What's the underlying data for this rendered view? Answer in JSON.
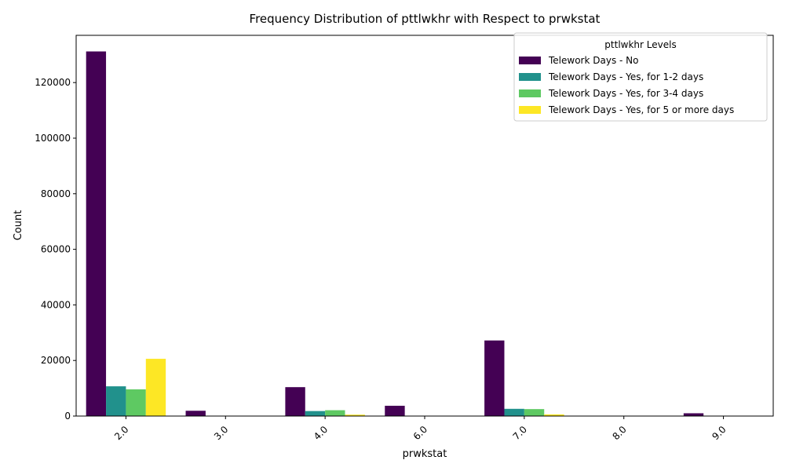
{
  "chart_data": {
    "type": "bar",
    "title": "Frequency Distribution of pttlwkhr with Respect to prwkstat",
    "xlabel": "prwkstat",
    "ylabel": "Count",
    "categories": [
      "2.0",
      "3.0",
      "4.0",
      "6.0",
      "7.0",
      "8.0",
      "9.0"
    ],
    "ylim": [
      0,
      137000
    ],
    "yticks": [
      0,
      20000,
      40000,
      60000,
      80000,
      100000,
      120000
    ],
    "ytick_labels": [
      "0",
      "20000",
      "40000",
      "60000",
      "80000",
      "100000",
      "120000"
    ],
    "grid": false,
    "legend": {
      "title": "pttlwkhr Levels",
      "placement": "top-right"
    },
    "series": [
      {
        "name": "Telework Days - No",
        "color": "#440154",
        "values": [
          131200,
          1900,
          10400,
          3700,
          27200,
          100,
          1000
        ]
      },
      {
        "name": "Telework Days - Yes, for 1-2 days",
        "color": "#21918c",
        "values": [
          10700,
          0,
          1800,
          0,
          2600,
          0,
          0
        ]
      },
      {
        "name": "Telework Days - Yes, for 3-4 days",
        "color": "#5ec962",
        "values": [
          9600,
          0,
          2100,
          0,
          2500,
          0,
          0
        ]
      },
      {
        "name": "Telework Days - Yes, for 5 or more days",
        "color": "#fde725",
        "values": [
          20600,
          0,
          500,
          0,
          600,
          0,
          0
        ]
      }
    ]
  }
}
